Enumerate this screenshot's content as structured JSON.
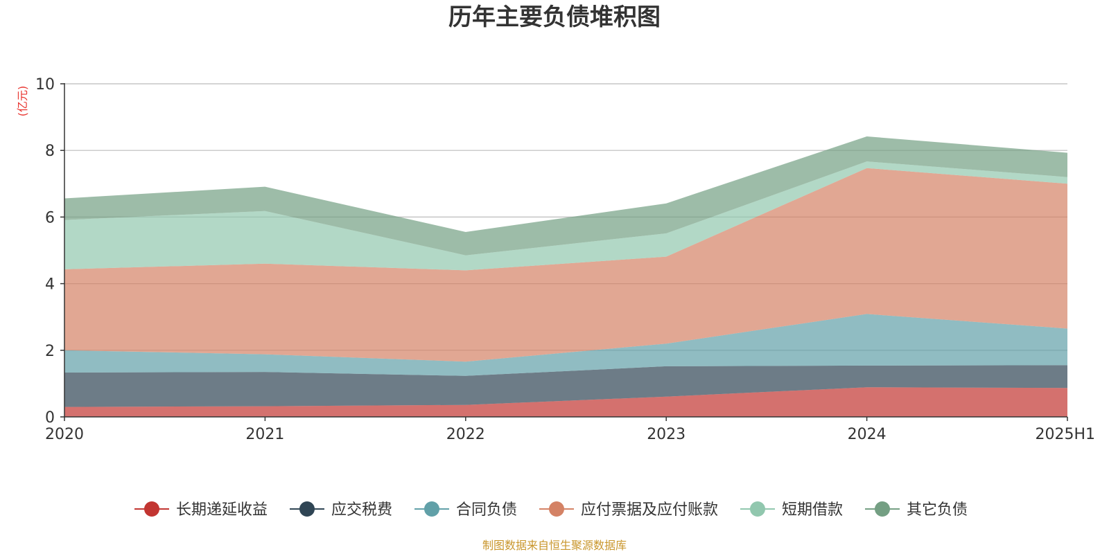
{
  "chart_data": {
    "type": "area",
    "stacked": true,
    "title": "历年主要负债堆积图",
    "unit_label": "(亿元)",
    "source_note": "制图数据来自恒生聚源数据库",
    "x": [
      "2020",
      "2021",
      "2022",
      "2023",
      "2024",
      "2025H1"
    ],
    "ylim": [
      0,
      10
    ],
    "yticks": [
      0,
      2,
      4,
      6,
      8,
      10
    ],
    "grid": true,
    "legend_position": "bottom",
    "series": [
      {
        "name": "长期递延收益",
        "color": "#c23531",
        "values": [
          0.3,
          0.32,
          0.36,
          0.61,
          0.89,
          0.87
        ]
      },
      {
        "name": "应交税费",
        "color": "#2f4554",
        "values": [
          1.03,
          1.03,
          0.87,
          0.91,
          0.65,
          0.68
        ]
      },
      {
        "name": "合同负债",
        "color": "#61a0a8",
        "values": [
          0.67,
          0.53,
          0.43,
          0.68,
          1.55,
          1.1
        ]
      },
      {
        "name": "应付票据及应付账款",
        "color": "#d48265",
        "values": [
          2.43,
          2.72,
          2.74,
          2.61,
          4.38,
          4.35
        ]
      },
      {
        "name": "短期借款",
        "color": "#91c7ae",
        "values": [
          1.48,
          1.58,
          0.45,
          0.7,
          0.2,
          0.2
        ]
      },
      {
        "name": "其它负债",
        "color": "#749f83",
        "values": [
          0.65,
          0.73,
          0.7,
          0.9,
          0.75,
          0.73
        ]
      }
    ]
  }
}
